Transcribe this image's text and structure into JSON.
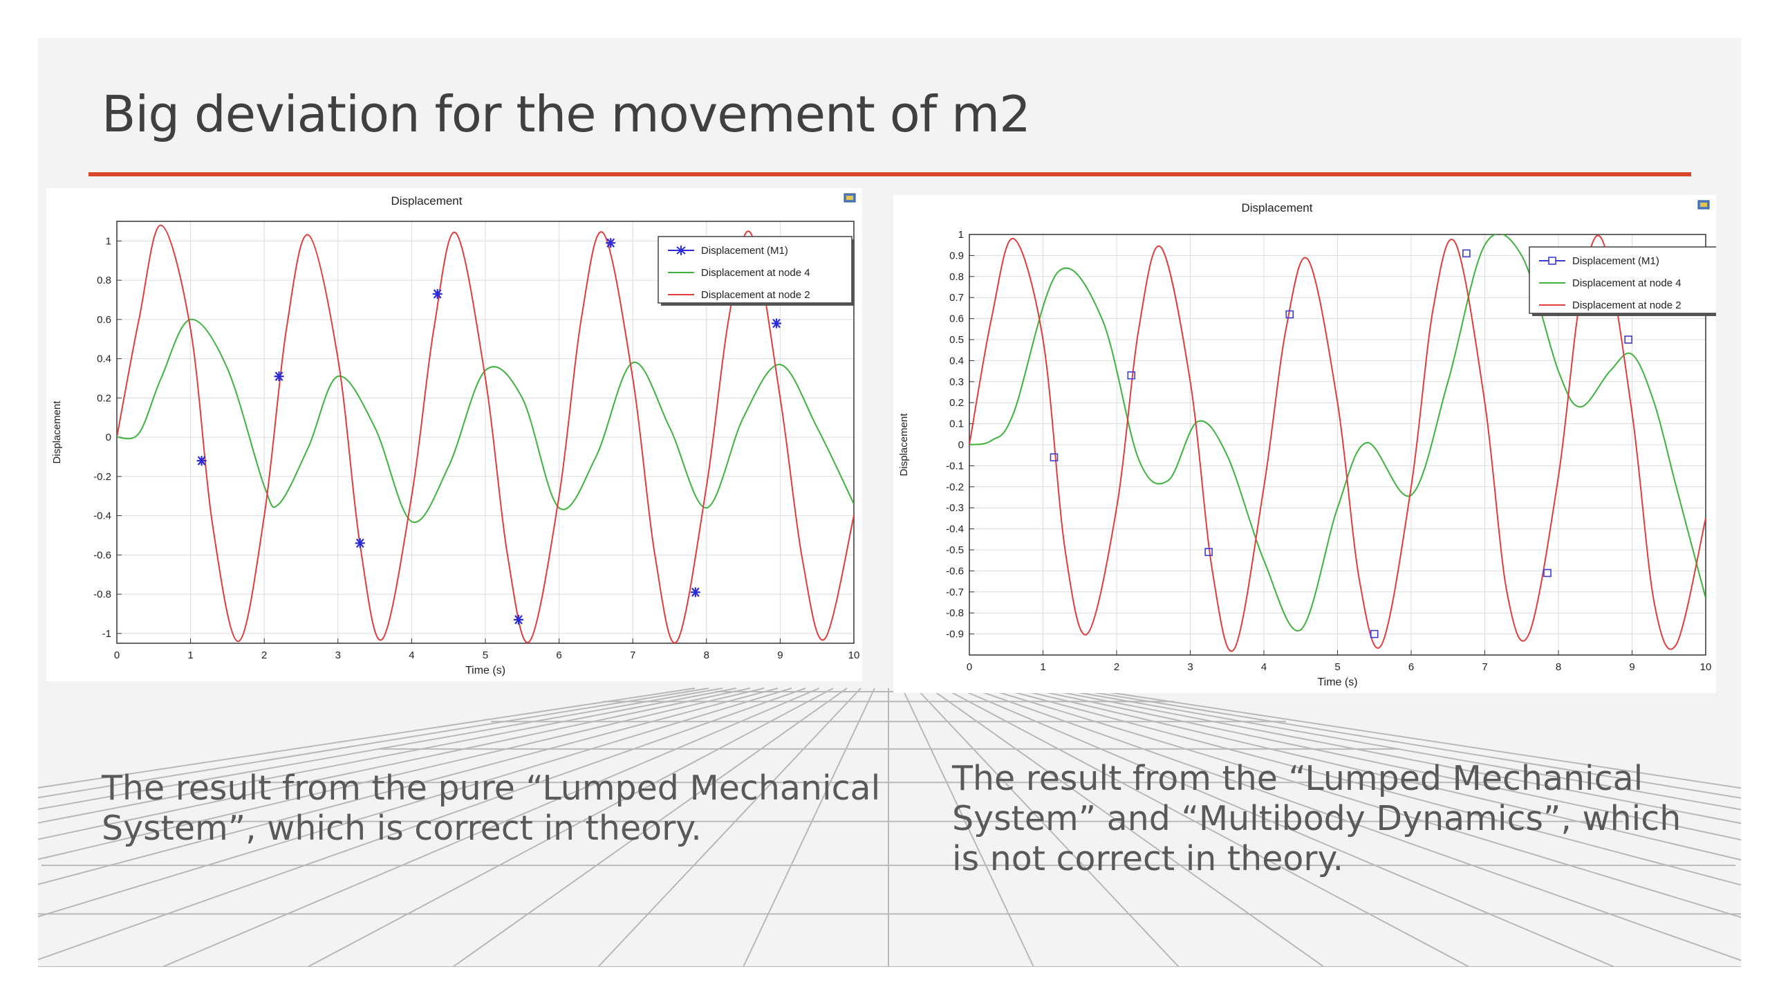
{
  "slide": {
    "title": "Big deviation for the movement of m2",
    "caption_left": "The result from the pure “Lumped Mechanical System”, which is correct in theory.",
    "caption_right": "The result from the “Lumped Mechanical System” and  “Multibody Dynamics”, which is not correct in theory.",
    "accent_color": "#d9472b"
  },
  "chart_data": [
    {
      "type": "line",
      "title": "Displacement",
      "xlabel": "Time (s)",
      "ylabel": "Displacement",
      "xlim": [
        0,
        10
      ],
      "ylim": [
        -1.05,
        1.1
      ],
      "xticks": [
        "0",
        "1",
        "2",
        "3",
        "4",
        "5",
        "6",
        "7",
        "8",
        "9",
        "10"
      ],
      "yticks": [
        "1",
        "0.8",
        "0.6",
        "0.4",
        "0.2",
        "0",
        "-0.2",
        "-0.4",
        "-0.6",
        "-0.8",
        "-1"
      ],
      "ytick_values": [
        1,
        0.8,
        0.6,
        0.4,
        0.2,
        0,
        -0.2,
        -0.4,
        -0.6,
        -0.8,
        -1
      ],
      "grid": true,
      "legend_position": "top-right",
      "series": [
        {
          "name": "Displacement (M1)",
          "color": "#2a2ad8",
          "marker": "star",
          "x": [
            1.15,
            2.2,
            3.3,
            4.35,
            5.45,
            6.7,
            7.85,
            8.95
          ],
          "y": [
            -0.12,
            0.31,
            -0.54,
            0.73,
            -0.93,
            0.99,
            -0.79,
            0.58
          ]
        },
        {
          "name": "Displacement at node 4",
          "color": "#3cb33c",
          "x": [
            0,
            0.3,
            0.6,
            1.0,
            1.5,
            2.0,
            2.2,
            2.6,
            3.0,
            3.5,
            4.0,
            4.5,
            5.0,
            5.5,
            6.0,
            6.5,
            7.0,
            7.5,
            8.0,
            8.5,
            9.0,
            9.5,
            10.0
          ],
          "y": [
            0,
            0.02,
            0.3,
            0.6,
            0.35,
            -0.25,
            -0.34,
            -0.05,
            0.31,
            0.05,
            -0.43,
            -0.15,
            0.34,
            0.2,
            -0.36,
            -0.1,
            0.38,
            0.05,
            -0.36,
            0.1,
            0.37,
            0.05,
            -0.34
          ]
        },
        {
          "name": "Displacement at node 2",
          "color": "#e03c3c",
          "x": [
            0,
            0.3,
            0.6,
            1.0,
            1.3,
            1.65,
            2.0,
            2.3,
            2.6,
            3.0,
            3.3,
            3.6,
            4.0,
            4.3,
            4.6,
            5.0,
            5.3,
            5.6,
            6.0,
            6.3,
            6.6,
            7.0,
            7.3,
            7.6,
            8.0,
            8.3,
            8.6,
            9.0,
            9.3,
            9.6,
            10.0
          ],
          "y": [
            0,
            0.6,
            1.08,
            0.55,
            -0.45,
            -1.04,
            -0.4,
            0.55,
            1.03,
            0.4,
            -0.55,
            -1.03,
            -0.3,
            0.55,
            1.04,
            0.3,
            -0.6,
            -1.04,
            -0.3,
            0.6,
            1.04,
            0.3,
            -0.6,
            -1.04,
            -0.25,
            0.6,
            1.04,
            0.2,
            -0.62,
            -1.03,
            -0.4
          ]
        }
      ]
    },
    {
      "type": "line",
      "title": "Displacement",
      "xlabel": "Time (s)",
      "ylabel": "Displacement",
      "xlim": [
        0,
        10
      ],
      "ylim": [
        -1.0,
        1.0
      ],
      "xticks": [
        "0",
        "1",
        "2",
        "3",
        "4",
        "5",
        "6",
        "7",
        "8",
        "9",
        "10"
      ],
      "yticks": [
        "1",
        "0.9",
        "0.8",
        "0.7",
        "0.6",
        "0.5",
        "0.4",
        "0.3",
        "0.2",
        "0.1",
        "0",
        "-0.1",
        "-0.2",
        "-0.3",
        "-0.4",
        "-0.5",
        "-0.6",
        "-0.7",
        "-0.8",
        "-0.9"
      ],
      "ytick_values": [
        1,
        0.9,
        0.8,
        0.7,
        0.6,
        0.5,
        0.4,
        0.3,
        0.2,
        0.1,
        0,
        -0.1,
        -0.2,
        -0.3,
        -0.4,
        -0.5,
        -0.6,
        -0.7,
        -0.8,
        -0.9
      ],
      "grid": true,
      "legend_position": "top-right",
      "series": [
        {
          "name": "Displacement (M1)",
          "color": "#3a3ad8",
          "marker": "square",
          "x": [
            1.15,
            2.2,
            3.25,
            4.35,
            5.5,
            6.75,
            7.85,
            8.95
          ],
          "y": [
            -0.06,
            0.33,
            -0.51,
            0.62,
            -0.9,
            0.91,
            -0.61,
            0.5
          ]
        },
        {
          "name": "Displacement at node 4",
          "color": "#3cb33c",
          "x": [
            0,
            0.3,
            0.6,
            1.2,
            1.8,
            2.3,
            2.7,
            3.1,
            3.5,
            4.0,
            4.5,
            5.0,
            5.4,
            6.0,
            6.5,
            7.0,
            7.5,
            8.0,
            8.3,
            8.7,
            9.0,
            9.3,
            9.6,
            10.0
          ],
          "y": [
            0,
            0.02,
            0.15,
            0.82,
            0.6,
            -0.07,
            -0.17,
            0.11,
            -0.05,
            -0.55,
            -0.88,
            -0.3,
            0.01,
            -0.24,
            0.3,
            0.95,
            0.9,
            0.35,
            0.18,
            0.35,
            0.43,
            0.2,
            -0.2,
            -0.73
          ]
        },
        {
          "name": "Displacement at node 2",
          "color": "#e03c3c",
          "x": [
            0,
            0.3,
            0.6,
            1.0,
            1.3,
            1.6,
            2.0,
            2.3,
            2.6,
            3.0,
            3.3,
            3.6,
            4.0,
            4.3,
            4.6,
            5.0,
            5.3,
            5.6,
            6.0,
            6.3,
            6.6,
            7.0,
            7.3,
            7.6,
            8.0,
            8.3,
            8.6,
            9.0,
            9.3,
            9.6,
            10.0
          ],
          "y": [
            0,
            0.6,
            0.98,
            0.5,
            -0.5,
            -0.9,
            -0.3,
            0.55,
            0.94,
            0.3,
            -0.6,
            -0.97,
            -0.2,
            0.55,
            0.88,
            0.2,
            -0.65,
            -0.95,
            -0.2,
            0.65,
            0.96,
            0.2,
            -0.7,
            -0.9,
            -0.15,
            0.7,
            0.97,
            0.15,
            -0.75,
            -0.95,
            -0.35
          ]
        }
      ]
    }
  ]
}
